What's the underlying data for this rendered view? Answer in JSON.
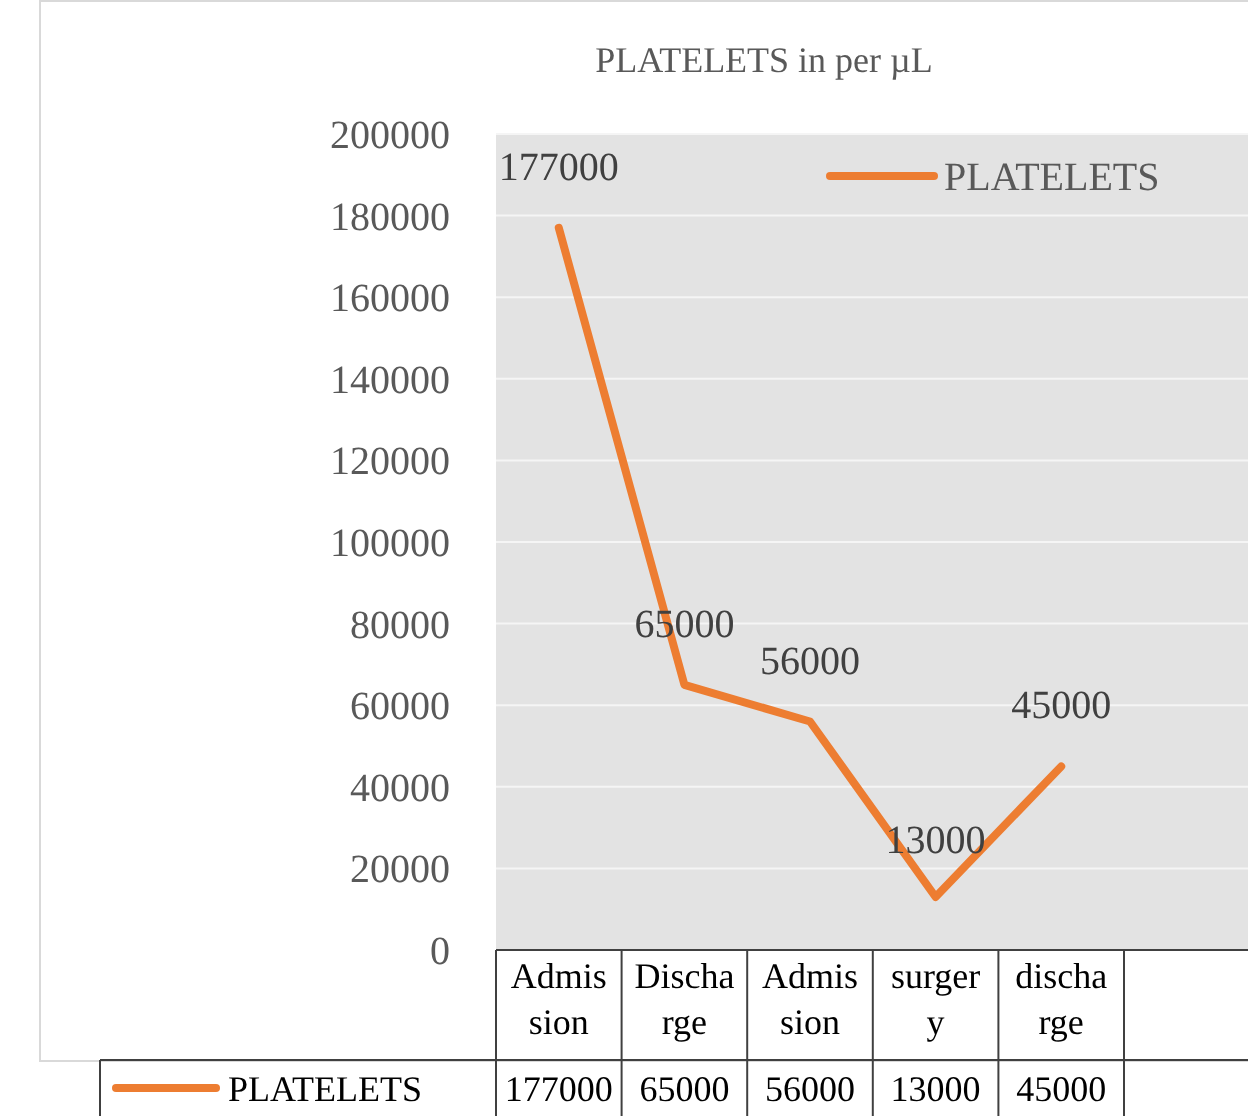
{
  "chart_data": {
    "type": "line",
    "title": "PLATELETS in per µL",
    "categories": [
      "Admission",
      "Discharge",
      "Admission",
      "surgery",
      "discharge",
      null
    ],
    "series": [
      {
        "name": "PLATELETS",
        "color": "#ed7d31",
        "values": [
          177000,
          65000,
          56000,
          13000,
          45000,
          null
        ],
        "value_labels": [
          "177000",
          "65000",
          "56000",
          "13000",
          "45000",
          null
        ]
      }
    ],
    "ylim": [
      0,
      200000
    ],
    "yticks": [
      0,
      20000,
      40000,
      60000,
      80000,
      100000,
      120000,
      140000,
      160000,
      180000,
      200000
    ],
    "grid": "y",
    "legend": "top right",
    "annotations": [
      "177000",
      "65000",
      "56000",
      "13000",
      "45000"
    ],
    "marker": "none",
    "line_style": "solid"
  }
}
